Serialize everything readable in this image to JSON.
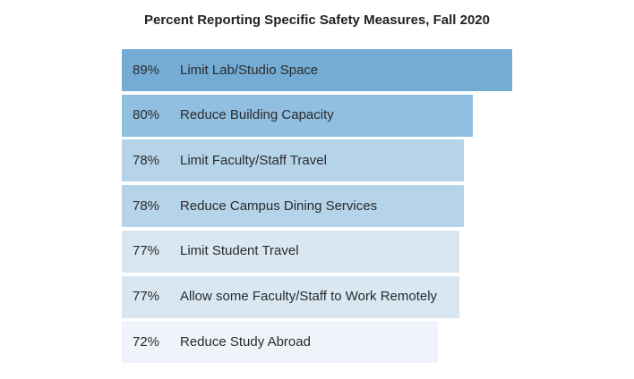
{
  "chart_data": {
    "type": "bar",
    "orientation": "horizontal",
    "title": "Percent Reporting Specific Safety Measures, Fall 2020",
    "xlabel": "",
    "ylabel": "",
    "xlim": [
      0,
      89
    ],
    "grid": false,
    "legend": "none",
    "categories": [
      "Limit Lab/Studio Space",
      "Reduce Building Capacity",
      "Limit Faculty/Staff Travel",
      "Reduce Campus Dining Services",
      "Limit Student Travel",
      "Allow some Faculty/Staff to Work Remotely",
      "Reduce Study Abroad"
    ],
    "values": [
      89,
      80,
      78,
      78,
      77,
      77,
      72
    ],
    "value_labels": [
      "89%",
      "80%",
      "78%",
      "78%",
      "77%",
      "77%",
      "72%"
    ],
    "bar_colors": [
      "#74acd6",
      "#90bfe0",
      "#b5d3e9",
      "#b5d3e9",
      "#d8e7f2",
      "#d8e7f2",
      "#eef4fa"
    ]
  }
}
